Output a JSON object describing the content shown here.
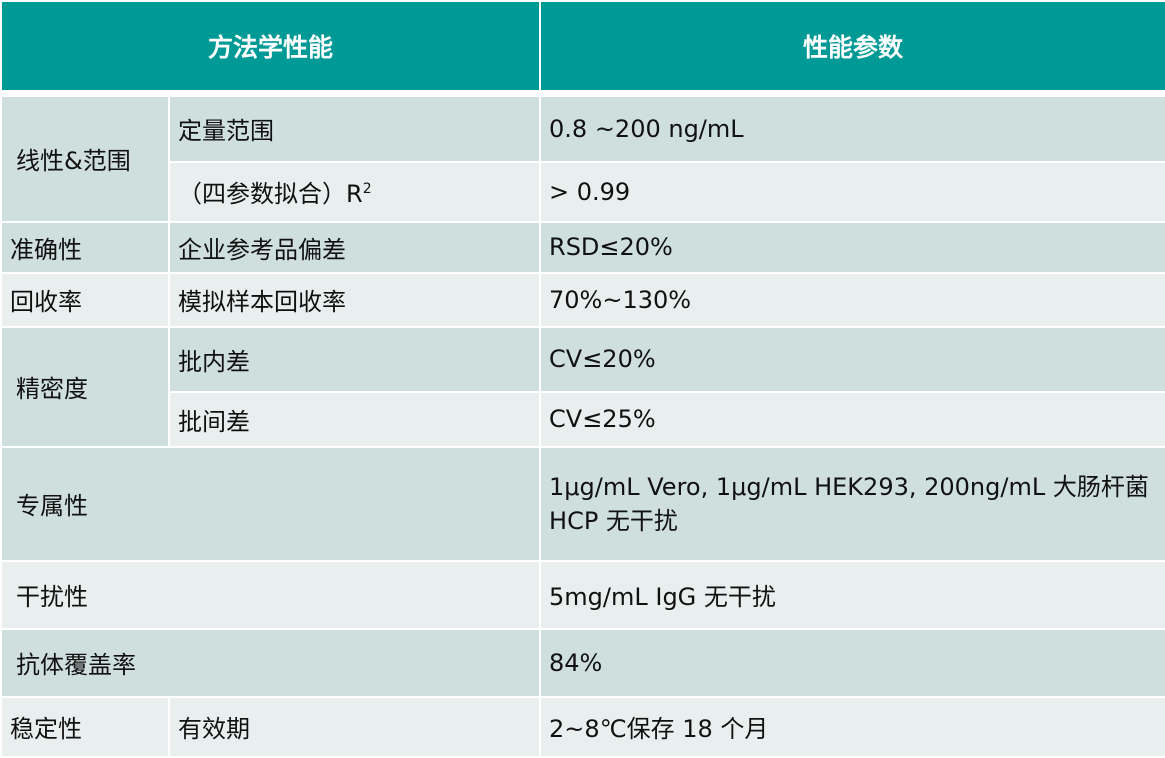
{
  "header": {
    "col1": "方法学性能",
    "col2": "性能参数"
  },
  "colors": {
    "header": "#009a96",
    "row_dark": "#cfdfdd",
    "row_light": "#e9efee"
  },
  "rows": {
    "linearity": {
      "category": "线性&范围",
      "quant_range_label": "定量范围",
      "quant_range_value": "0.8 ~200 ng/mL",
      "r2_label": "（四参数拟合）R",
      "r2_sup": "2",
      "r2_value": "> 0.99"
    },
    "accuracy": {
      "category": "准确性",
      "label": "企业参考品偏差",
      "value": "RSD≤20%"
    },
    "recovery": {
      "category": "回收率",
      "label": "模拟样本回收率",
      "value": "70%~130%"
    },
    "precision": {
      "category": "精密度",
      "intra_label": "批内差",
      "intra_value": "CV≤20%",
      "inter_label": "批间差",
      "inter_value": "CV≤25%"
    },
    "specificity": {
      "category": "专属性",
      "value": "1μg/mL Vero, 1μg/mL HEK293, 200ng/mL 大肠杆菌 HCP 无干扰"
    },
    "interference": {
      "category": "干扰性",
      "value": "5mg/mL IgG 无干扰"
    },
    "coverage": {
      "category": "抗体覆盖率",
      "value": "84%"
    },
    "stability": {
      "category": "稳定性",
      "label": "有效期",
      "value": "2~8℃保存 18 个月"
    }
  }
}
